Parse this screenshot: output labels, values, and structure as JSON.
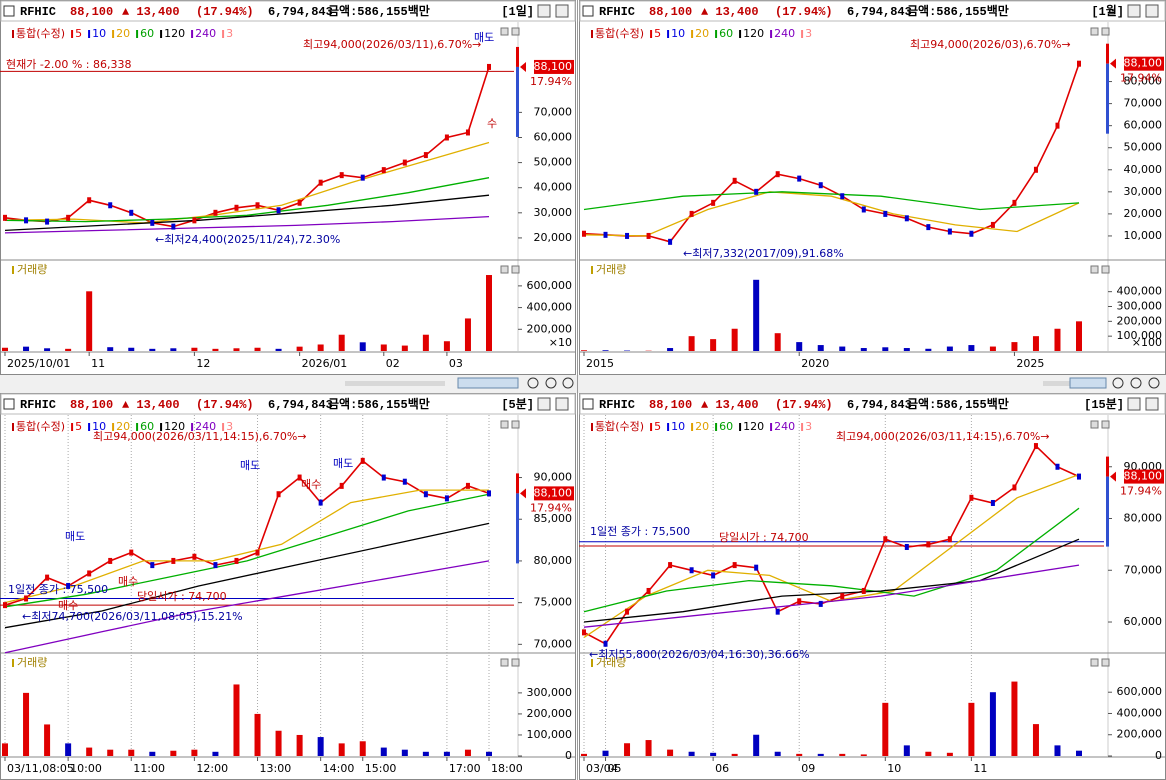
{
  "panels": [
    {
      "header": {
        "symbol": "RFHIC",
        "price": "88,100",
        "change": "▲ 13,400",
        "rate": "(17.94%)",
        "volume": "6,794,843",
        "amount": "금액:586,155백만",
        "period": "[1일]"
      },
      "legend": [
        {
          "label": "통합(수정)",
          "color": "#c00000"
        },
        {
          "label": "5",
          "color": "#e00000"
        },
        {
          "label": "10",
          "color": "#0000e0"
        },
        {
          "label": "20",
          "color": "#e0a000"
        },
        {
          "label": "60",
          "color": "#00a000"
        },
        {
          "label": "120",
          "color": "#000000"
        },
        {
          "label": "240",
          "color": "#8000c0"
        },
        {
          "label": "3",
          "color": "#ff8080"
        }
      ],
      "annotations": [
        {
          "text": "최고94,000(2026/03/11),6.70%→",
          "color": "#c00000"
        },
        {
          "text": "매도",
          "color": "#0000c0"
        },
        {
          "text": "현재가 -2.00 % : 86,338",
          "color": "#c00000"
        },
        {
          "text": "←최저24,400(2025/11/24),72.30%",
          "color": "#0000a0"
        },
        {
          "text": "수",
          "color": "#c00000"
        }
      ],
      "price": {
        "ylim": [
          12000,
          106000
        ],
        "yticks": [
          {
            "value": 20000,
            "label": "20,000"
          },
          {
            "value": 30000,
            "label": "30,000"
          },
          {
            "value": 40000,
            "label": "40,000"
          },
          {
            "value": 50000,
            "label": "50,000"
          },
          {
            "value": 60000,
            "label": "60,000"
          },
          {
            "value": 70000,
            "label": "70,000"
          }
        ],
        "ref_lines": [
          {
            "value": 86338,
            "color": "#c00000"
          }
        ],
        "last": {
          "value": 88100,
          "label": "88,100",
          "rate": "17.94%"
        },
        "series": [
          {
            "color": "#e00000",
            "values": [
              28000,
              27000,
              26500,
              28000,
              35000,
              33000,
              30000,
              26000,
              24500,
              27000,
              30000,
              32000,
              33000,
              31000,
              34000,
              42000,
              45000,
              44000,
              47000,
              50000,
              53000,
              60000,
              62000,
              88100
            ]
          },
          {
            "color": "#e0b000",
            "values": [
              27000,
              27500,
              26000,
              29000,
              33000,
              42000,
              50000,
              58000
            ]
          },
          {
            "color": "#00b000",
            "values": [
              27000,
              26500,
              27500,
              29000,
              33000,
              38000,
              44000
            ]
          },
          {
            "color": "#000000",
            "values": [
              23000,
              25000,
              27000,
              30000,
              33000,
              37000
            ]
          },
          {
            "color": "#8000c0",
            "values": [
              22000,
              23000,
              24000,
              25000,
              26500,
              28500
            ]
          }
        ]
      },
      "volume": {
        "label": "거래량",
        "unit": "×10",
        "ylim": [
          0,
          820000
        ],
        "yticks": [
          {
            "value": 200000,
            "label": "200,000"
          },
          {
            "value": 400000,
            "label": "400,000"
          },
          {
            "value": 600000,
            "label": "600,000"
          }
        ],
        "values": [
          30000,
          40000,
          25000,
          20000,
          550000,
          35000,
          30000,
          20000,
          25000,
          30000,
          20000,
          25000,
          30000,
          20000,
          40000,
          60000,
          150000,
          80000,
          60000,
          50000,
          150000,
          90000,
          300000,
          700000
        ]
      },
      "categories": [
        "2025/10/01",
        null,
        null,
        null,
        "11",
        null,
        null,
        null,
        null,
        "12",
        null,
        null,
        null,
        null,
        "2026/01",
        null,
        null,
        null,
        "02",
        null,
        null,
        "03",
        null,
        null
      ],
      "grid": false
    },
    {
      "header": {
        "symbol": "RFHIC",
        "price": "88,100",
        "change": "▲ 13,400",
        "rate": "(17.94%)",
        "volume": "6,794,843",
        "amount": "금액:586,155백만",
        "period": "[1월]"
      },
      "legend": [
        {
          "label": "통합(수정)",
          "color": "#c00000"
        },
        {
          "label": "5",
          "color": "#e00000"
        },
        {
          "label": "10",
          "color": "#0000e0"
        },
        {
          "label": "20",
          "color": "#e0a000"
        },
        {
          "label": "60",
          "color": "#00a000"
        },
        {
          "label": "120",
          "color": "#000000"
        },
        {
          "label": "240",
          "color": "#8000c0"
        },
        {
          "label": "3",
          "color": "#ff8080"
        }
      ],
      "annotations": [
        {
          "text": "최고94,000(2026/03),6.70%→",
          "color": "#c00000"
        },
        {
          "text": "←최저7,332(2017/09),91.68%",
          "color": "#0000a0"
        }
      ],
      "price": {
        "ylim": [
          0,
          107000
        ],
        "yticks": [
          {
            "value": 10000,
            "label": "10,000"
          },
          {
            "value": 20000,
            "label": "20,000"
          },
          {
            "value": 30000,
            "label": "30,000"
          },
          {
            "value": 40000,
            "label": "40,000"
          },
          {
            "value": 50000,
            "label": "50,000"
          },
          {
            "value": 60000,
            "label": "60,000"
          },
          {
            "value": 70000,
            "label": "70,000"
          },
          {
            "value": 80000,
            "label": "80,000"
          }
        ],
        "ref_lines": [],
        "last": {
          "value": 88100,
          "label": "88,100",
          "rate": "17.94%"
        },
        "series": [
          {
            "color": "#e00000",
            "values": [
              11000,
              10500,
              10000,
              10000,
              7332,
              20000,
              25000,
              35000,
              30000,
              38000,
              36000,
              33000,
              28000,
              22000,
              20000,
              18000,
              14000,
              12000,
              11000,
              15000,
              25000,
              40000,
              60000,
              88100
            ]
          },
          {
            "color": "#e0b000",
            "values": [
              10500,
              10000,
              22000,
              30000,
              28000,
              20000,
              15000,
              12000,
              25000
            ]
          },
          {
            "color": "#00b000",
            "values": [
              22000,
              28000,
              30000,
              28000,
              22000,
              25000
            ]
          }
        ]
      },
      "volume": {
        "label": "거래량",
        "unit": "×100",
        "ylim": [
          0,
          600000
        ],
        "yticks": [
          {
            "value": 100000,
            "label": "100,000"
          },
          {
            "value": 200000,
            "label": "200,000"
          },
          {
            "value": 300000,
            "label": "300,000"
          },
          {
            "value": 400000,
            "label": "400,000"
          }
        ],
        "values": [
          5000,
          5000,
          3000,
          2000,
          20000,
          100000,
          80000,
          150000,
          480000,
          120000,
          60000,
          40000,
          30000,
          20000,
          25000,
          20000,
          15000,
          30000,
          40000,
          30000,
          60000,
          100000,
          150000,
          200000
        ]
      },
      "categories": [
        "2015",
        null,
        null,
        null,
        null,
        null,
        null,
        null,
        null,
        null,
        "2020",
        null,
        null,
        null,
        null,
        null,
        null,
        null,
        null,
        null,
        "2025",
        null,
        null,
        null
      ],
      "grid": false
    },
    {
      "header": {
        "symbol": "RFHIC",
        "price": "88,100",
        "change": "▲ 13,400",
        "rate": "(17.94%)",
        "volume": "6,794,843",
        "amount": "금액:586,155백만",
        "period": "[5분]"
      },
      "legend": [
        {
          "label": "통합(수정)",
          "color": "#c00000"
        },
        {
          "label": "5",
          "color": "#e00000"
        },
        {
          "label": "10",
          "color": "#0000e0"
        },
        {
          "label": "20",
          "color": "#e0a000"
        },
        {
          "label": "60",
          "color": "#00a000"
        },
        {
          "label": "120",
          "color": "#000000"
        },
        {
          "label": "240",
          "color": "#8000c0"
        },
        {
          "label": "3",
          "color": "#ff8080"
        }
      ],
      "annotations": [
        {
          "text": "최고94,000(2026/03/11,14:15),6.70%→",
          "color": "#c00000"
        },
        {
          "text": "매도",
          "color": "#0000c0"
        },
        {
          "text": "매수",
          "color": "#c00000"
        },
        {
          "text": "매수",
          "color": "#c00000"
        },
        {
          "text": "매도",
          "color": "#0000c0"
        },
        {
          "text": "매도",
          "color": "#0000c0"
        },
        {
          "text": "매수",
          "color": "#c00000"
        },
        {
          "text": "1일전 종가 : 75,500",
          "color": "#0000a0"
        },
        {
          "text": "당일시가 : 74,700",
          "color": "#c00000"
        },
        {
          "text": "←최저74,700(2026/03/11,08:05),15.21%",
          "color": "#0000a0"
        }
      ],
      "price": {
        "ylim": [
          69200,
          97500
        ],
        "yticks": [
          {
            "value": 70000,
            "label": "70,000"
          },
          {
            "value": 75000,
            "label": "75,000"
          },
          {
            "value": 80000,
            "label": "80,000"
          },
          {
            "value": 85000,
            "label": "85,000"
          },
          {
            "value": 90000,
            "label": "90,000"
          }
        ],
        "ref_lines": [
          {
            "value": 75500,
            "color": "#0000c0"
          },
          {
            "value": 74700,
            "color": "#c00000"
          }
        ],
        "last": {
          "value": 88100,
          "label": "88,100",
          "rate": "17.94%"
        },
        "series": [
          {
            "color": "#e00000",
            "values": [
              74700,
              75500,
              78000,
              77000,
              78500,
              80000,
              81000,
              79500,
              80000,
              80500,
              79500,
              80000,
              81000,
              88000,
              90000,
              87000,
              89000,
              92000,
              90000,
              89500,
              88000,
              87500,
              89000,
              88100
            ]
          },
          {
            "color": "#e0b000",
            "values": [
              75000,
              77000,
              80000,
              80000,
              82000,
              87000,
              88500,
              88500
            ]
          },
          {
            "color": "#00b000",
            "values": [
              74500,
              76000,
              78000,
              80000,
              83000,
              86000,
              88000
            ]
          },
          {
            "color": "#000000",
            "values": [
              72000,
              74000,
              77000,
              79500,
              82000,
              84500
            ]
          },
          {
            "color": "#8000c0",
            "values": [
              69000,
              71500,
              74000,
              76000,
              78000,
              80000
            ]
          }
        ]
      },
      "volume": {
        "label": "거래량",
        "ylim": [
          0,
          480000
        ],
        "yticks": [
          {
            "value": 0,
            "label": "0"
          },
          {
            "value": 100000,
            "label": "100,000"
          },
          {
            "value": 200000,
            "label": "200,000"
          },
          {
            "value": 300000,
            "label": "300,000"
          }
        ],
        "values": [
          60000,
          300000,
          150000,
          60000,
          40000,
          30000,
          30000,
          20000,
          25000,
          30000,
          20000,
          340000,
          200000,
          120000,
          100000,
          90000,
          60000,
          70000,
          40000,
          30000,
          20000,
          20000,
          30000,
          20000
        ]
      },
      "categories": [
        "03/11,08:05",
        null,
        null,
        "10:00",
        null,
        null,
        "11:00",
        null,
        null,
        "12:00",
        null,
        null,
        "13:00",
        null,
        null,
        "14:00",
        null,
        "15:00",
        null,
        null,
        null,
        "17:00",
        null,
        "18:00"
      ],
      "grid": true
    },
    {
      "header": {
        "symbol": "RFHIC",
        "price": "88,100",
        "change": "▲ 13,400",
        "rate": "(17.94%)",
        "volume": "6,794,843",
        "amount": "금액:586,155백만",
        "period": "[15분]"
      },
      "legend": [
        {
          "label": "통합(수정)",
          "color": "#c00000"
        },
        {
          "label": "5",
          "color": "#e00000"
        },
        {
          "label": "10",
          "color": "#0000e0"
        },
        {
          "label": "20",
          "color": "#e0a000"
        },
        {
          "label": "60",
          "color": "#00a000"
        },
        {
          "label": "120",
          "color": "#000000"
        },
        {
          "label": "240",
          "color": "#8000c0"
        },
        {
          "label": "3",
          "color": "#ff8080"
        }
      ],
      "annotations": [
        {
          "text": "최고94,000(2026/03/11,14:15),6.70%→",
          "color": "#c00000"
        },
        {
          "text": "1일전 종가 : 75,500",
          "color": "#0000a0"
        },
        {
          "text": "당일시가 : 74,700",
          "color": "#c00000"
        },
        {
          "text": "←최저55,800(2026/03/04,16:30),36.66%",
          "color": "#0000a0"
        }
      ],
      "price": {
        "ylim": [
          54400,
          100000
        ],
        "yticks": [
          {
            "value": 60000,
            "label": "60,000"
          },
          {
            "value": 70000,
            "label": "70,000"
          },
          {
            "value": 80000,
            "label": "80,000"
          },
          {
            "value": 90000,
            "label": "90,000"
          }
        ],
        "ref_lines": [
          {
            "value": 75500,
            "color": "#0000c0"
          },
          {
            "value": 74700,
            "color": "#c00000"
          }
        ],
        "last": {
          "value": 88100,
          "label": "88,100",
          "rate": "17.94%"
        },
        "series": [
          {
            "color": "#e00000",
            "values": [
              58000,
              55800,
              62000,
              66000,
              71000,
              70000,
              69000,
              71000,
              70500,
              62000,
              64000,
              63500,
              65000,
              66000,
              76000,
              74500,
              75000,
              76000,
              84000,
              83000,
              86000,
              94000,
              90000,
              88100
            ]
          },
          {
            "color": "#e0b000",
            "values": [
              57000,
              65000,
              70000,
              69000,
              64000,
              66000,
              75000,
              84000,
              88500
            ]
          },
          {
            "color": "#00b000",
            "values": [
              62000,
              66000,
              68000,
              67000,
              65000,
              70000,
              82000
            ]
          },
          {
            "color": "#000000",
            "values": [
              60000,
              62000,
              65000,
              66000,
              68000,
              76000
            ]
          },
          {
            "color": "#8000c0",
            "values": [
              59000,
              61000,
              63000,
              65000,
              68000,
              71000
            ]
          }
        ]
      },
      "volume": {
        "label": "거래량",
        "ylim": [
          0,
          950000
        ],
        "yticks": [
          {
            "value": 0,
            "label": "0"
          },
          {
            "value": 200000,
            "label": "200,000"
          },
          {
            "value": 400000,
            "label": "400,000"
          },
          {
            "value": 600000,
            "label": "600,000"
          }
        ],
        "values": [
          20000,
          50000,
          120000,
          150000,
          60000,
          40000,
          30000,
          20000,
          200000,
          40000,
          20000,
          20000,
          20000,
          15000,
          500000,
          100000,
          40000,
          30000,
          500000,
          600000,
          700000,
          300000,
          100000,
          50000
        ]
      },
      "categories": [
        "03/04",
        "05",
        null,
        null,
        null,
        null,
        "06",
        null,
        null,
        null,
        "09",
        null,
        null,
        null,
        "10",
        null,
        null,
        null,
        "11",
        null,
        null,
        null,
        null,
        null
      ],
      "grid": true
    }
  ]
}
